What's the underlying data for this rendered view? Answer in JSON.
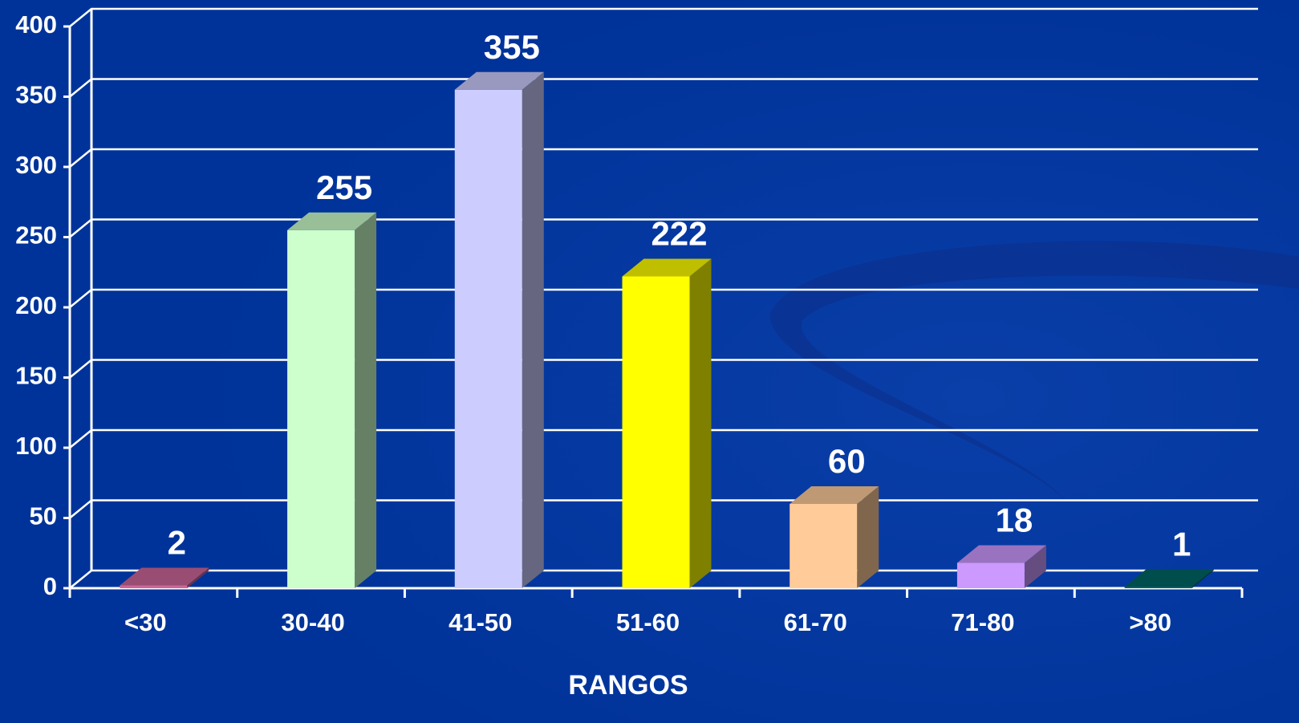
{
  "chart_data": {
    "type": "bar3d",
    "categories": [
      "<30",
      "30-40",
      "41-50",
      "51-60",
      "61-70",
      "71-80",
      ">80"
    ],
    "values": [
      2,
      255,
      355,
      222,
      60,
      18,
      1
    ],
    "colors": [
      "#cc6699",
      "#ccffcc",
      "#ccccff",
      "#ffff00",
      "#ffcc99",
      "#cc99ff",
      "#006666"
    ],
    "x_label": "RANGOS",
    "ylim": [
      0,
      400
    ],
    "yticks": [
      0,
      50,
      100,
      150,
      200,
      250,
      300,
      350,
      400
    ],
    "grid": true
  }
}
